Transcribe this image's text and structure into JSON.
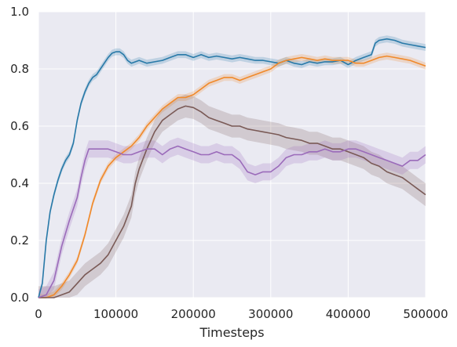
{
  "chart_data": {
    "type": "line",
    "xlabel": "Timesteps",
    "ylabel": "",
    "xlim": [
      0,
      500000
    ],
    "ylim": [
      0,
      1.0
    ],
    "x_ticks": [
      0,
      100000,
      200000,
      300000,
      400000,
      500000
    ],
    "x_tick_labels": [
      "0",
      "100000",
      "200000",
      "300000",
      "400000",
      "500000"
    ],
    "y_ticks": [
      0,
      0.2,
      0.4,
      0.6,
      0.8,
      1.0
    ],
    "y_tick_labels": [
      "0.0",
      "0.2",
      "0.4",
      "0.6",
      "0.8",
      "1.0"
    ],
    "grid": true,
    "background": "#eaeaf2",
    "grid_color": "#ffffff",
    "series": [
      {
        "color": "#2879a8",
        "band": 0.012,
        "points": [
          [
            0,
            0
          ],
          [
            5000,
            0.05
          ],
          [
            10000,
            0.2
          ],
          [
            15000,
            0.3
          ],
          [
            20000,
            0.36
          ],
          [
            25000,
            0.41
          ],
          [
            30000,
            0.45
          ],
          [
            35000,
            0.48
          ],
          [
            40000,
            0.5
          ],
          [
            45000,
            0.54
          ],
          [
            50000,
            0.62
          ],
          [
            55000,
            0.68
          ],
          [
            60000,
            0.72
          ],
          [
            65000,
            0.75
          ],
          [
            70000,
            0.77
          ],
          [
            75000,
            0.78
          ],
          [
            80000,
            0.8
          ],
          [
            85000,
            0.82
          ],
          [
            90000,
            0.84
          ],
          [
            95000,
            0.855
          ],
          [
            100000,
            0.86
          ],
          [
            105000,
            0.86
          ],
          [
            110000,
            0.85
          ],
          [
            115000,
            0.83
          ],
          [
            120000,
            0.82
          ],
          [
            130000,
            0.83
          ],
          [
            140000,
            0.82
          ],
          [
            150000,
            0.825
          ],
          [
            160000,
            0.83
          ],
          [
            170000,
            0.84
          ],
          [
            180000,
            0.85
          ],
          [
            190000,
            0.85
          ],
          [
            200000,
            0.84
          ],
          [
            210000,
            0.85
          ],
          [
            220000,
            0.84
          ],
          [
            230000,
            0.845
          ],
          [
            240000,
            0.84
          ],
          [
            250000,
            0.835
          ],
          [
            260000,
            0.84
          ],
          [
            270000,
            0.835
          ],
          [
            280000,
            0.83
          ],
          [
            290000,
            0.83
          ],
          [
            300000,
            0.825
          ],
          [
            310000,
            0.82
          ],
          [
            320000,
            0.83
          ],
          [
            330000,
            0.82
          ],
          [
            340000,
            0.815
          ],
          [
            350000,
            0.825
          ],
          [
            360000,
            0.82
          ],
          [
            370000,
            0.825
          ],
          [
            380000,
            0.825
          ],
          [
            390000,
            0.83
          ],
          [
            400000,
            0.815
          ],
          [
            410000,
            0.83
          ],
          [
            420000,
            0.84
          ],
          [
            430000,
            0.85
          ],
          [
            435000,
            0.89
          ],
          [
            440000,
            0.9
          ],
          [
            450000,
            0.905
          ],
          [
            460000,
            0.9
          ],
          [
            470000,
            0.89
          ],
          [
            480000,
            0.885
          ],
          [
            490000,
            0.88
          ],
          [
            500000,
            0.875
          ]
        ]
      },
      {
        "color": "#f0892a",
        "band": 0.012,
        "points": [
          [
            0,
            0
          ],
          [
            10000,
            0
          ],
          [
            20000,
            0.01
          ],
          [
            30000,
            0.04
          ],
          [
            40000,
            0.08
          ],
          [
            50000,
            0.13
          ],
          [
            60000,
            0.22
          ],
          [
            70000,
            0.33
          ],
          [
            80000,
            0.41
          ],
          [
            90000,
            0.46
          ],
          [
            100000,
            0.49
          ],
          [
            110000,
            0.51
          ],
          [
            120000,
            0.53
          ],
          [
            130000,
            0.56
          ],
          [
            140000,
            0.6
          ],
          [
            150000,
            0.63
          ],
          [
            160000,
            0.66
          ],
          [
            170000,
            0.68
          ],
          [
            180000,
            0.7
          ],
          [
            190000,
            0.7
          ],
          [
            200000,
            0.71
          ],
          [
            210000,
            0.73
          ],
          [
            220000,
            0.75
          ],
          [
            230000,
            0.76
          ],
          [
            240000,
            0.77
          ],
          [
            250000,
            0.77
          ],
          [
            260000,
            0.76
          ],
          [
            270000,
            0.77
          ],
          [
            280000,
            0.78
          ],
          [
            290000,
            0.79
          ],
          [
            300000,
            0.8
          ],
          [
            310000,
            0.82
          ],
          [
            320000,
            0.83
          ],
          [
            330000,
            0.835
          ],
          [
            340000,
            0.84
          ],
          [
            350000,
            0.835
          ],
          [
            360000,
            0.83
          ],
          [
            370000,
            0.835
          ],
          [
            380000,
            0.83
          ],
          [
            390000,
            0.83
          ],
          [
            400000,
            0.83
          ],
          [
            410000,
            0.82
          ],
          [
            420000,
            0.82
          ],
          [
            430000,
            0.83
          ],
          [
            440000,
            0.84
          ],
          [
            450000,
            0.845
          ],
          [
            460000,
            0.84
          ],
          [
            470000,
            0.835
          ],
          [
            480000,
            0.83
          ],
          [
            490000,
            0.82
          ],
          [
            500000,
            0.81
          ]
        ]
      },
      {
        "color": "#7a5a56",
        "band": 0.04,
        "points": [
          [
            0,
            0
          ],
          [
            10000,
            0
          ],
          [
            20000,
            0
          ],
          [
            30000,
            0.01
          ],
          [
            40000,
            0.02
          ],
          [
            50000,
            0.05
          ],
          [
            60000,
            0.08
          ],
          [
            70000,
            0.1
          ],
          [
            80000,
            0.12
          ],
          [
            90000,
            0.15
          ],
          [
            100000,
            0.2
          ],
          [
            110000,
            0.25
          ],
          [
            120000,
            0.32
          ],
          [
            125000,
            0.4
          ],
          [
            130000,
            0.45
          ],
          [
            140000,
            0.52
          ],
          [
            150000,
            0.58
          ],
          [
            160000,
            0.62
          ],
          [
            170000,
            0.64
          ],
          [
            180000,
            0.66
          ],
          [
            190000,
            0.67
          ],
          [
            200000,
            0.665
          ],
          [
            210000,
            0.65
          ],
          [
            220000,
            0.63
          ],
          [
            230000,
            0.62
          ],
          [
            240000,
            0.61
          ],
          [
            250000,
            0.6
          ],
          [
            260000,
            0.6
          ],
          [
            270000,
            0.59
          ],
          [
            280000,
            0.585
          ],
          [
            290000,
            0.58
          ],
          [
            300000,
            0.575
          ],
          [
            310000,
            0.57
          ],
          [
            320000,
            0.56
          ],
          [
            330000,
            0.555
          ],
          [
            340000,
            0.55
          ],
          [
            350000,
            0.54
          ],
          [
            360000,
            0.54
          ],
          [
            370000,
            0.53
          ],
          [
            380000,
            0.52
          ],
          [
            390000,
            0.52
          ],
          [
            400000,
            0.51
          ],
          [
            410000,
            0.5
          ],
          [
            420000,
            0.49
          ],
          [
            430000,
            0.47
          ],
          [
            440000,
            0.46
          ],
          [
            450000,
            0.44
          ],
          [
            460000,
            0.43
          ],
          [
            470000,
            0.42
          ],
          [
            480000,
            0.4
          ],
          [
            490000,
            0.38
          ],
          [
            500000,
            0.36
          ]
        ]
      },
      {
        "color": "#9b6bba",
        "band": 0.03,
        "points": [
          [
            0,
            0
          ],
          [
            10000,
            0.01
          ],
          [
            20000,
            0.06
          ],
          [
            30000,
            0.18
          ],
          [
            40000,
            0.27
          ],
          [
            50000,
            0.35
          ],
          [
            55000,
            0.42
          ],
          [
            60000,
            0.48
          ],
          [
            65000,
            0.52
          ],
          [
            70000,
            0.52
          ],
          [
            80000,
            0.52
          ],
          [
            90000,
            0.52
          ],
          [
            100000,
            0.51
          ],
          [
            110000,
            0.5
          ],
          [
            120000,
            0.5
          ],
          [
            130000,
            0.51
          ],
          [
            140000,
            0.52
          ],
          [
            150000,
            0.52
          ],
          [
            160000,
            0.5
          ],
          [
            170000,
            0.52
          ],
          [
            180000,
            0.53
          ],
          [
            190000,
            0.52
          ],
          [
            200000,
            0.51
          ],
          [
            210000,
            0.5
          ],
          [
            220000,
            0.5
          ],
          [
            230000,
            0.51
          ],
          [
            240000,
            0.5
          ],
          [
            250000,
            0.5
          ],
          [
            260000,
            0.48
          ],
          [
            270000,
            0.44
          ],
          [
            280000,
            0.43
          ],
          [
            290000,
            0.44
          ],
          [
            300000,
            0.44
          ],
          [
            310000,
            0.46
          ],
          [
            320000,
            0.49
          ],
          [
            330000,
            0.5
          ],
          [
            340000,
            0.5
          ],
          [
            350000,
            0.51
          ],
          [
            360000,
            0.51
          ],
          [
            370000,
            0.52
          ],
          [
            380000,
            0.51
          ],
          [
            390000,
            0.51
          ],
          [
            400000,
            0.52
          ],
          [
            410000,
            0.52
          ],
          [
            420000,
            0.51
          ],
          [
            430000,
            0.5
          ],
          [
            440000,
            0.49
          ],
          [
            450000,
            0.48
          ],
          [
            460000,
            0.47
          ],
          [
            470000,
            0.46
          ],
          [
            480000,
            0.48
          ],
          [
            490000,
            0.48
          ],
          [
            500000,
            0.5
          ]
        ]
      }
    ]
  }
}
